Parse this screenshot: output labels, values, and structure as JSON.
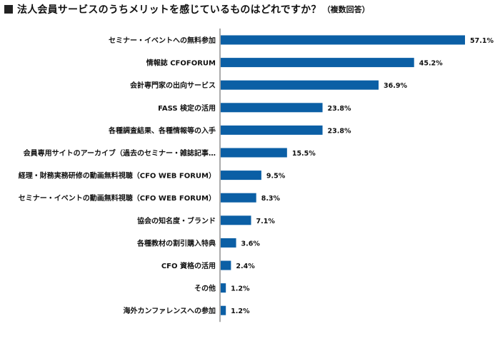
{
  "title": {
    "marker": "■",
    "main": "法人会員サービスのうちメリットを感じているものはどれですか？",
    "note": "（複数回答）"
  },
  "colors": {
    "bar": "#0b5fa5",
    "axis": "#555555",
    "text": "#111111"
  },
  "chart_data": {
    "type": "bar",
    "orientation": "horizontal",
    "title": "法人会員サービスのうちメリットを感じているものはどれですか？（複数回答）",
    "categories": [
      "セミナー・イベントへの無料参加",
      "情報誌 CFOFORUM",
      "会計専門家の出向サービス",
      "FASS 検定の活用",
      "各種調査結果、各種情報等の入手",
      "会員専用サイトのアーカイブ（過去のセミナー・雑誌記事…",
      "経理・財務実務研修の動画無料視聴（CFO WEB FORUM）",
      "セミナー・イベントの動画無料視聴（CFO WEB FORUM）",
      "協会の知名度・ブランド",
      "各種教材の割引購入特典",
      "CFO 資格の活用",
      "その他",
      "海外カンファレンスへの参加"
    ],
    "values": [
      57.1,
      45.2,
      36.9,
      23.8,
      23.8,
      15.5,
      9.5,
      8.3,
      7.1,
      3.6,
      2.4,
      1.2,
      1.2
    ],
    "value_labels": [
      "57.1%",
      "45.2%",
      "36.9%",
      "23.8%",
      "23.8%",
      "15.5%",
      "9.5%",
      "8.3%",
      "7.1%",
      "3.6%",
      "2.4%",
      "1.2%",
      "1.2%"
    ],
    "unit": "%",
    "xlim": [
      0,
      60
    ],
    "grid": false,
    "legend": "none"
  }
}
